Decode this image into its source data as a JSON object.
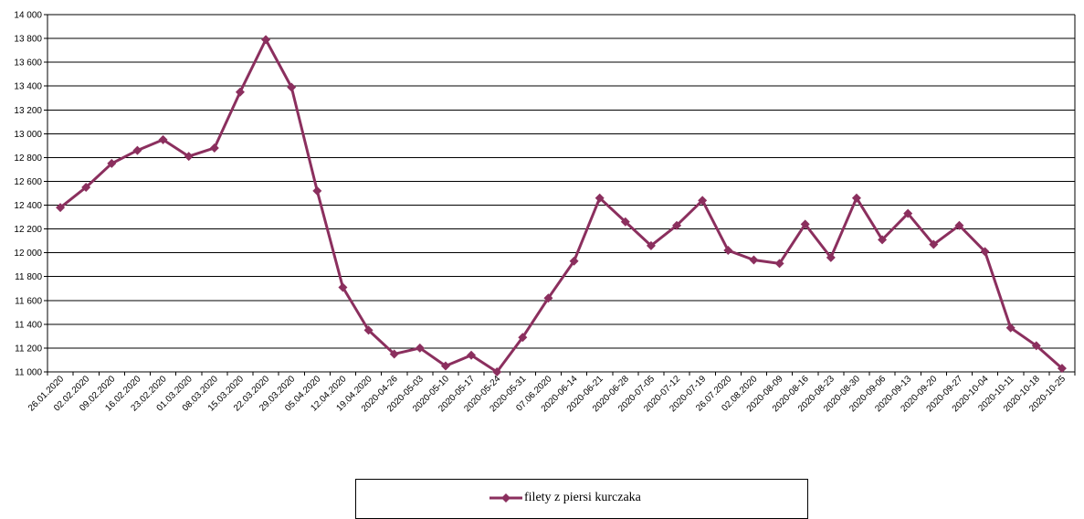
{
  "chart_data": {
    "type": "line",
    "title": "",
    "xlabel": "",
    "ylabel": "",
    "ylim": [
      11000,
      14000
    ],
    "y_tick_step": 200,
    "y_tick_labels": [
      "11 000",
      "11 200",
      "11 400",
      "11 600",
      "11 800",
      "12 000",
      "12 200",
      "12 400",
      "12 600",
      "12 800",
      "13 000",
      "13 200",
      "13 400",
      "13 600",
      "13 800",
      "14 000"
    ],
    "grid": "horizontal",
    "legend_position": "bottom",
    "categories": [
      "26.01.2020",
      "02.02.2020",
      "09.02.2020",
      "16.02.2020",
      "23.02.2020",
      "01.03.2020",
      "08.03.2020",
      "15.03.2020",
      "22.03.2020",
      "29.03.2020",
      "05.04.2020",
      "12.04.2020",
      "19.04.2020",
      "2020-04-26",
      "2020-05-03",
      "2020-05-10",
      "2020-05-17",
      "2020-05-24",
      "2020-05-31",
      "07.06.2020",
      "2020-06-14",
      "2020-06-21",
      "2020-06-28",
      "2020-07-05",
      "2020-07-12",
      "2020-07-19",
      "26.07.2020",
      "02.08.2020",
      "2020-08-09",
      "2020-08-16",
      "2020-08-23",
      "2020-08-30",
      "2020-09-06",
      "2020-09-13",
      "2020-09-20",
      "2020-09-27",
      "2020-10-04",
      "2020-10-11",
      "2020-10-18",
      "2020-10-25"
    ],
    "series": [
      {
        "name": "filety z piersi kurczaka",
        "color": "#8B2F5E",
        "values": [
          12380,
          12550,
          12750,
          12860,
          12950,
          12810,
          12880,
          13350,
          13790,
          13390,
          12520,
          11710,
          11350,
          11150,
          11200,
          11050,
          11140,
          11000,
          11290,
          11620,
          11930,
          12460,
          12260,
          12060,
          12230,
          12440,
          12020,
          11940,
          11910,
          12240,
          11960,
          12460,
          12110,
          12330,
          12070,
          12230,
          12010,
          11370,
          11220,
          11030
        ]
      }
    ]
  }
}
